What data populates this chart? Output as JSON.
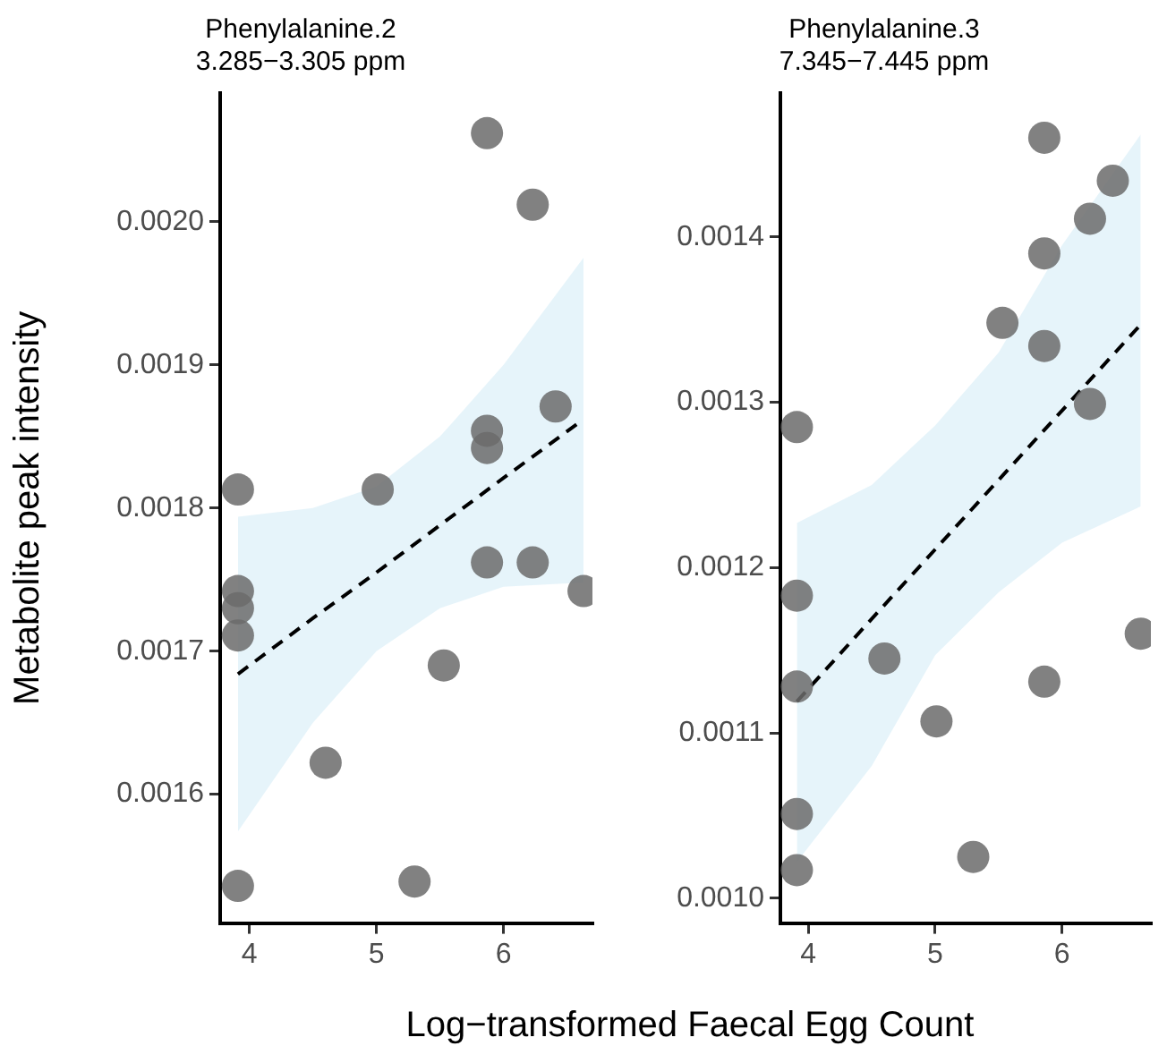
{
  "chart_data": [
    {
      "type": "scatter",
      "title": "Phenylalanine.2",
      "subtitle": "3.285−3.305 ppm",
      "ylabel": "Metabolite peak intensity",
      "xlim": [
        3.77,
        6.7
      ],
      "xticks": [
        4,
        5,
        6
      ],
      "ylim": [
        0.00151,
        0.00209
      ],
      "yticks": [
        {
          "value": 0.0016,
          "label": "0.0016"
        },
        {
          "value": 0.0017,
          "label": "0.0017"
        },
        {
          "value": 0.0018,
          "label": "0.0018"
        },
        {
          "value": 0.0019,
          "label": "0.0019"
        },
        {
          "value": 0.002,
          "label": "0.0020"
        }
      ],
      "grid": false,
      "legend": false,
      "marker": "circle",
      "series": [
        {
          "type": "line",
          "color": "#000000",
          "line_style": "dashed",
          "marker": "none",
          "x": [
            3.91,
            4.5,
            5.0,
            5.5,
            6.0,
            6.63
          ],
          "values": [
            0.001684,
            0.001723,
            0.001755,
            0.001788,
            0.001821,
            0.001862
          ],
          "lower": [
            0.001574,
            0.00165,
            0.0017,
            0.00173,
            0.001745,
            0.001748
          ],
          "upper": [
            0.001794,
            0.0018,
            0.001815,
            0.00185,
            0.0019,
            0.001975
          ]
        },
        {
          "type": "scatter",
          "color": "#6b6b6b",
          "x": [
            3.91,
            3.91,
            3.91,
            3.91,
            3.91,
            4.6,
            5.01,
            5.3,
            5.53,
            5.87,
            5.87,
            5.87,
            5.87,
            6.23,
            6.23,
            6.41,
            6.63
          ],
          "values": [
            0.001813,
            0.001742,
            0.00173,
            0.001711,
            0.001536,
            0.001622,
            0.001813,
            0.001539,
            0.00169,
            0.002062,
            0.001854,
            0.001842,
            0.001762,
            0.002012,
            0.001762,
            0.001871,
            0.001742
          ]
        }
      ]
    },
    {
      "type": "scatter",
      "title": "Phenylalanine.3",
      "subtitle": "7.345−7.445 ppm",
      "xlabel": "Log−transformed Faecal Egg Count",
      "xlim": [
        3.78,
        6.7
      ],
      "xticks": [
        4,
        5,
        6
      ],
      "ylim": [
        0.000985,
        0.001487
      ],
      "yticks": [
        {
          "value": 0.001,
          "label": "0.0010"
        },
        {
          "value": 0.0011,
          "label": "0.0011"
        },
        {
          "value": 0.0012,
          "label": "0.0012"
        },
        {
          "value": 0.0013,
          "label": "0.0013"
        },
        {
          "value": 0.0014,
          "label": "0.0014"
        }
      ],
      "grid": false,
      "legend": false,
      "marker": "circle",
      "series": [
        {
          "type": "line",
          "color": "#000000",
          "line_style": "dashed",
          "marker": "none",
          "x": [
            3.91,
            4.5,
            5.0,
            5.5,
            6.0,
            6.62
          ],
          "values": [
            0.001119,
            0.001169,
            0.001211,
            0.001253,
            0.001295,
            0.001347
          ],
          "lower": [
            0.001022,
            0.00108,
            0.001147,
            0.001185,
            0.001215,
            0.001237
          ],
          "upper": [
            0.001227,
            0.00125,
            0.001286,
            0.00133,
            0.001395,
            0.001462
          ]
        },
        {
          "type": "scatter",
          "color": "#6b6b6b",
          "x": [
            3.91,
            3.91,
            3.91,
            3.91,
            3.91,
            4.6,
            5.01,
            5.3,
            5.53,
            5.86,
            5.86,
            5.86,
            5.86,
            6.22,
            6.22,
            6.4,
            6.62
          ],
          "values": [
            0.001285,
            0.001183,
            0.001128,
            0.001051,
            0.001017,
            0.001145,
            0.001107,
            0.001025,
            0.001348,
            0.00146,
            0.00139,
            0.001334,
            0.001131,
            0.001411,
            0.001299,
            0.001434,
            0.00116
          ]
        }
      ]
    }
  ]
}
